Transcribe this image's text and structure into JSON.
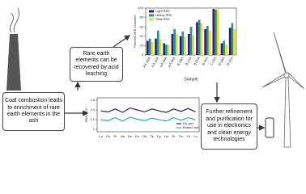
{
  "captions": {
    "coal": "Coal combustion leads to enrichment of rare earth elements in the ash",
    "leach": "Rare earth elements can be recovered by acid leaching",
    "refine": "Further refinement and purification for use in electronics and clean energy technologies"
  },
  "chart_data": [
    {
      "type": "bar",
      "ylabel": "Percent REE Leached",
      "xlabel": "Sample",
      "categories": [
        "AA-1BA",
        "AA-1FA",
        "AA-2FA",
        "AA-3FA",
        "B-1BA",
        "B-1FA",
        "B-2FA",
        "B-3FA",
        "C-1FA",
        "D-1BA",
        "D-1FA"
      ],
      "series": [
        {
          "name": "Light REE",
          "color": "#3b1e5f",
          "values": [
            30,
            35,
            25,
            45,
            40,
            45,
            70,
            55,
            98,
            25,
            58
          ]
        },
        {
          "name": "Heavy REE",
          "color": "#2a8fa0",
          "values": [
            35,
            52,
            22,
            55,
            50,
            60,
            75,
            62,
            97,
            30,
            68
          ]
        },
        {
          "name": "Total REE",
          "color": "#e3dc3a",
          "values": [
            28,
            33,
            22,
            44,
            38,
            42,
            68,
            52,
            96,
            22,
            55
          ]
        }
      ],
      "ylim": [
        0,
        100
      ],
      "yticks": [
        0,
        20,
        40,
        60,
        80,
        100
      ]
    },
    {
      "type": "line",
      "ylabel": "REE/UCC",
      "categories": [
        "La",
        "Ce",
        "Pr",
        "Nd",
        "Sm",
        "Eu",
        "Gd",
        "Tb",
        "Dy",
        "Ho",
        "Er",
        "Tm",
        "Yb",
        "Lu"
      ],
      "series": [
        {
          "name": "Fly ash",
          "color": "#3b1e5f",
          "values": [
            1.38,
            1.36,
            1.42,
            1.35,
            1.44,
            1.4,
            1.36,
            1.42,
            1.38,
            1.35,
            1.42,
            1.37,
            1.43,
            1.36
          ]
        },
        {
          "name": "Bottom ash",
          "color": "#2ab09a",
          "values": [
            1.2,
            1.18,
            1.24,
            1.17,
            1.25,
            1.21,
            1.18,
            1.23,
            1.2,
            1.17,
            1.24,
            1.19,
            1.24,
            1.2
          ]
        }
      ],
      "ylim": [
        0.95,
        1.65
      ],
      "yticks": [
        1.0,
        1.2,
        1.4,
        1.6
      ]
    }
  ]
}
